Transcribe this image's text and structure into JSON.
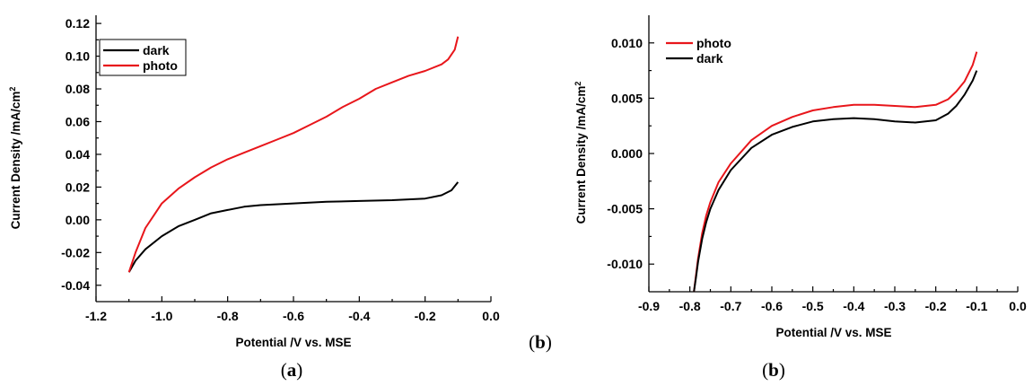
{
  "chart_data": [
    {
      "type": "line",
      "xlabel": "Potential  /V vs. MSE",
      "ylabel": "Current Density  /mA/cm",
      "ylabel_sup": "2",
      "xlim": [
        -1.2,
        0.0
      ],
      "ylim": [
        -0.05,
        0.125
      ],
      "x_ticks": [
        -1.2,
        -1.0,
        -0.8,
        -0.6,
        -0.4,
        -0.2,
        0.0
      ],
      "x_tick_labels": [
        "-1.2",
        "-1.0",
        "-0.8",
        "-0.6",
        "-0.4",
        "-0.2",
        "0.0"
      ],
      "y_ticks": [
        -0.04,
        -0.02,
        0.0,
        0.02,
        0.04,
        0.06,
        0.08,
        0.1,
        0.12
      ],
      "y_tick_labels": [
        "-0.04",
        "-0.02",
        "0.00",
        "0.02",
        "0.04",
        "0.06",
        "0.08",
        "0.10",
        "0.12"
      ],
      "legend_position": "top-left",
      "series": [
        {
          "name": "dark",
          "color": "#000000",
          "x": [
            -1.1,
            -1.08,
            -1.05,
            -1.0,
            -0.95,
            -0.9,
            -0.85,
            -0.8,
            -0.75,
            -0.7,
            -0.6,
            -0.5,
            -0.4,
            -0.3,
            -0.2,
            -0.15,
            -0.12,
            -0.1
          ],
          "y": [
            -0.032,
            -0.025,
            -0.018,
            -0.01,
            -0.004,
            0.0,
            0.004,
            0.006,
            0.008,
            0.009,
            0.01,
            0.011,
            0.0115,
            0.012,
            0.013,
            0.015,
            0.018,
            0.023
          ]
        },
        {
          "name": "photo",
          "color": "#e8161b",
          "x": [
            -1.1,
            -1.08,
            -1.05,
            -1.02,
            -1.0,
            -0.95,
            -0.9,
            -0.85,
            -0.8,
            -0.75,
            -0.7,
            -0.65,
            -0.6,
            -0.55,
            -0.5,
            -0.45,
            -0.4,
            -0.35,
            -0.3,
            -0.25,
            -0.2,
            -0.15,
            -0.13,
            -0.11,
            -0.1
          ],
          "y": [
            -0.032,
            -0.02,
            -0.005,
            0.004,
            0.01,
            0.019,
            0.026,
            0.032,
            0.037,
            0.041,
            0.045,
            0.049,
            0.053,
            0.058,
            0.063,
            0.069,
            0.074,
            0.08,
            0.084,
            0.088,
            0.091,
            0.095,
            0.098,
            0.104,
            0.112
          ]
        }
      ]
    },
    {
      "type": "line",
      "xlabel": "Potential  /V  vs. MSE",
      "ylabel": "Current Density  /mA/cm",
      "ylabel_sup": "2",
      "xlim": [
        -0.9,
        0.0
      ],
      "ylim": [
        -0.0125,
        0.0125
      ],
      "x_ticks": [
        -0.9,
        -0.8,
        -0.7,
        -0.6,
        -0.5,
        -0.4,
        -0.3,
        -0.2,
        -0.1,
        0.0
      ],
      "x_tick_labels": [
        "-0.9",
        "-0.8",
        "-0.7",
        "-0.6",
        "-0.5",
        "-0.4",
        "-0.3",
        "-0.2",
        "-0.1",
        "0.0"
      ],
      "y_ticks": [
        -0.01,
        -0.005,
        0.0,
        0.005,
        0.01
      ],
      "y_tick_labels": [
        "-0.010",
        "-0.005",
        "0.000",
        "0.005",
        "0.010"
      ],
      "legend_position": "top-left",
      "series": [
        {
          "name": "photo",
          "color": "#e8161b",
          "x": [
            -0.79,
            -0.785,
            -0.78,
            -0.77,
            -0.76,
            -0.75,
            -0.73,
            -0.7,
            -0.65,
            -0.6,
            -0.55,
            -0.5,
            -0.45,
            -0.4,
            -0.35,
            -0.3,
            -0.25,
            -0.2,
            -0.17,
            -0.15,
            -0.13,
            -0.11,
            -0.1
          ],
          "y": [
            -0.0125,
            -0.011,
            -0.0095,
            -0.0072,
            -0.0056,
            -0.0044,
            -0.0026,
            -0.0009,
            0.0012,
            0.0025,
            0.0033,
            0.0039,
            0.0042,
            0.0044,
            0.0044,
            0.0043,
            0.0042,
            0.0044,
            0.0049,
            0.0056,
            0.0065,
            0.008,
            0.0092
          ]
        },
        {
          "name": "dark",
          "color": "#000000",
          "x": [
            -0.79,
            -0.785,
            -0.78,
            -0.77,
            -0.76,
            -0.75,
            -0.73,
            -0.7,
            -0.65,
            -0.6,
            -0.55,
            -0.5,
            -0.45,
            -0.4,
            -0.35,
            -0.3,
            -0.25,
            -0.2,
            -0.17,
            -0.15,
            -0.13,
            -0.11,
            -0.1
          ],
          "y": [
            -0.0125,
            -0.0112,
            -0.0098,
            -0.0077,
            -0.0062,
            -0.005,
            -0.0033,
            -0.0015,
            0.0005,
            0.0017,
            0.0024,
            0.0029,
            0.0031,
            0.0032,
            0.0031,
            0.0029,
            0.0028,
            0.003,
            0.0036,
            0.0043,
            0.0053,
            0.0066,
            0.0075
          ]
        }
      ]
    }
  ],
  "captions": {
    "left": "(a)",
    "left_side": "(b)",
    "right": "(b)"
  }
}
